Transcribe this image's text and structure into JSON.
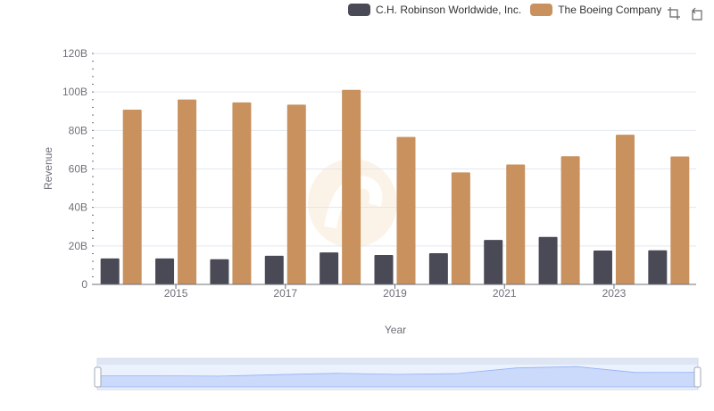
{
  "legend": [
    {
      "name": "C.H. Robinson Worldwide, Inc.",
      "color": "#4a4a56"
    },
    {
      "name": "The Boeing Company",
      "color": "#c8915e"
    }
  ],
  "toolbox": {
    "zoom_icon": "zoom-icon",
    "restore_icon": "restore-icon"
  },
  "chart_data": {
    "type": "bar",
    "xlabel": "Year",
    "ylabel": "Revenue",
    "ylim": [
      0,
      120
    ],
    "ytick_labels": [
      "0",
      "20B",
      "40B",
      "60B",
      "80B",
      "100B",
      "120B"
    ],
    "categories": [
      "2014",
      "2015",
      "2016",
      "2017",
      "2018",
      "2019",
      "2020",
      "2021",
      "2022",
      "2023",
      "2024"
    ],
    "xtick_labels": [
      "2015",
      "2017",
      "2019",
      "2021",
      "2023"
    ],
    "series": [
      {
        "name": "C.H. Robinson Worldwide, Inc.",
        "color": "#4a4a56",
        "values": [
          13.5,
          13.5,
          13.1,
          14.9,
          16.6,
          15.3,
          16.2,
          23.1,
          24.7,
          17.6,
          17.7
        ]
      },
      {
        "name": "The Boeing Company",
        "color": "#c8915e",
        "values": [
          90.8,
          96.1,
          94.6,
          93.4,
          101.1,
          76.6,
          58.2,
          62.3,
          66.6,
          77.8,
          66.5
        ]
      }
    ],
    "grid": true,
    "legend_position": "top-right",
    "datazoom": {
      "start": 0,
      "end": 100
    }
  }
}
